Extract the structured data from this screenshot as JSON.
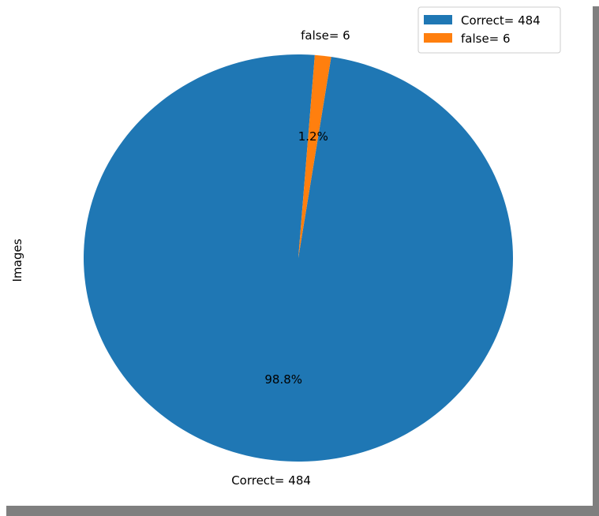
{
  "chart_data": {
    "type": "pie",
    "ylabel": "Images",
    "title": "",
    "slices": [
      {
        "label": "Correct= 484",
        "value": 484,
        "pct_label": "98.8%",
        "color": "#1f77b4"
      },
      {
        "label": "false= 6",
        "value": 6,
        "pct_label": "1.2%",
        "color": "#ff7f0e"
      }
    ],
    "legend": {
      "placement": "top-right",
      "entries": [
        "Correct= 484",
        "false= 6"
      ]
    }
  }
}
